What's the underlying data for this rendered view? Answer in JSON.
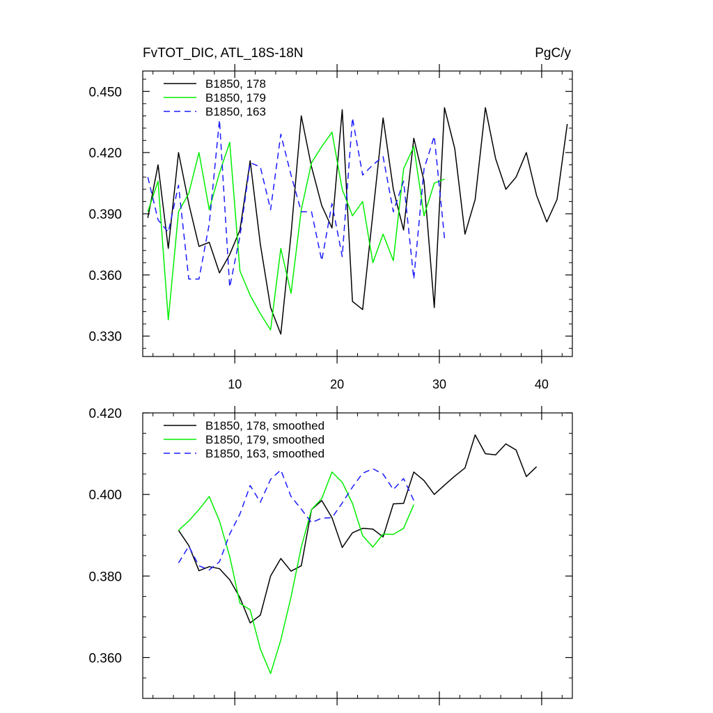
{
  "header": {
    "left_title": "FvTOT_DIC, ATL_18S-18N",
    "right_title": "PgC/y"
  },
  "chart_data": [
    {
      "type": "line",
      "xlim": [
        1,
        43
      ],
      "ylim": [
        0.32,
        0.46
      ],
      "x_ticks": [
        10,
        20,
        30,
        40
      ],
      "x_minor_step": 2,
      "y_ticks": [
        0.33,
        0.36,
        0.39,
        0.42,
        0.45
      ],
      "y_tick_labels": [
        "0.330",
        "0.360",
        "0.390",
        "0.420",
        "0.450"
      ],
      "y_minor_step": 0.006,
      "show_x_tick_labels": true,
      "legend_position": "top-left",
      "series": [
        {
          "name": "B1850, 178",
          "color": "#000000",
          "dash": "solid",
          "x": [
            1.5,
            2.5,
            3.5,
            4.5,
            5.5,
            6.5,
            7.5,
            8.5,
            9.5,
            10.5,
            11.5,
            12.5,
            13.5,
            14.5,
            15.5,
            16.5,
            17.5,
            18.5,
            19.5,
            20.5,
            21.5,
            22.5,
            23.5,
            24.5,
            25.5,
            26.5,
            27.5,
            28.5,
            29.5,
            30.5,
            31.5,
            32.5,
            33.5,
            34.5,
            35.5,
            36.5,
            37.5,
            38.5,
            39.5,
            40.5,
            41.5,
            42.5
          ],
          "y": [
            0.388,
            0.414,
            0.373,
            0.42,
            0.395,
            0.374,
            0.376,
            0.361,
            0.37,
            0.382,
            0.416,
            0.375,
            0.344,
            0.331,
            0.38,
            0.438,
            0.413,
            0.394,
            0.383,
            0.441,
            0.347,
            0.343,
            0.39,
            0.437,
            0.402,
            0.382,
            0.427,
            0.406,
            0.344,
            0.442,
            0.422,
            0.38,
            0.397,
            0.442,
            0.417,
            0.402,
            0.408,
            0.42,
            0.399,
            0.386,
            0.397,
            0.434
          ]
        },
        {
          "name": "B1850, 179",
          "color": "#00ee00",
          "dash": "solid",
          "x": [
            1.5,
            2.5,
            3.5,
            4.5,
            5.5,
            6.5,
            7.5,
            8.5,
            9.5,
            10.5,
            11.5,
            12.5,
            13.5,
            14.5,
            15.5,
            16.5,
            17.5,
            18.5,
            19.5,
            20.5,
            21.5,
            22.5,
            23.5,
            24.5,
            25.5,
            26.5,
            27.5,
            28.5,
            29.5,
            30.5
          ],
          "y": [
            0.391,
            0.406,
            0.338,
            0.391,
            0.4,
            0.42,
            0.392,
            0.41,
            0.425,
            0.362,
            0.35,
            0.341,
            0.333,
            0.373,
            0.351,
            0.392,
            0.415,
            0.423,
            0.43,
            0.402,
            0.389,
            0.396,
            0.366,
            0.38,
            0.367,
            0.412,
            0.423,
            0.389,
            0.405,
            0.407
          ]
        },
        {
          "name": "B1850, 163",
          "color": "#1a1aff",
          "dash": "dashed",
          "x": [
            1.5,
            2.5,
            3.5,
            4.5,
            5.5,
            6.5,
            7.5,
            8.5,
            9.5,
            10.5,
            11.5,
            12.5,
            13.5,
            14.5,
            15.5,
            16.5,
            17.5,
            18.5,
            19.5,
            20.5,
            21.5,
            22.5,
            23.5,
            24.5,
            25.5,
            26.5,
            27.5,
            28.5,
            29.5,
            30.5
          ],
          "y": [
            0.408,
            0.387,
            0.381,
            0.404,
            0.358,
            0.358,
            0.385,
            0.436,
            0.354,
            0.379,
            0.415,
            0.413,
            0.392,
            0.429,
            0.409,
            0.391,
            0.391,
            0.367,
            0.395,
            0.369,
            0.437,
            0.409,
            0.414,
            0.418,
            0.391,
            0.406,
            0.358,
            0.412,
            0.428,
            0.378
          ]
        }
      ]
    },
    {
      "type": "line",
      "xlim": [
        1,
        43
      ],
      "ylim": [
        0.35,
        0.42
      ],
      "x_ticks": [
        10,
        20,
        30,
        40
      ],
      "x_minor_step": 2,
      "y_ticks": [
        0.36,
        0.38,
        0.4,
        0.42
      ],
      "y_tick_labels": [
        "0.360",
        "0.380",
        "0.400",
        "0.420"
      ],
      "y_minor_step": 0.005,
      "show_x_tick_labels": false,
      "legend_position": "top-left",
      "series": [
        {
          "name": "B1850, 178, smoothed",
          "color": "#000000",
          "dash": "solid",
          "x": [
            4.5,
            5.5,
            6.5,
            7.5,
            8.5,
            9.5,
            10.5,
            11.5,
            12.5,
            13.5,
            14.5,
            15.5,
            16.5,
            17.5,
            18.5,
            19.5,
            20.5,
            21.5,
            22.5,
            23.5,
            24.5,
            25.5,
            26.5,
            27.5,
            28.5,
            29.5,
            30.5,
            31.5,
            32.5,
            33.5,
            34.5,
            35.5,
            36.5,
            37.5,
            38.5,
            39.5
          ],
          "y": [
            0.3912,
            0.3875,
            0.3813,
            0.3823,
            0.3818,
            0.3791,
            0.3747,
            0.3685,
            0.3704,
            0.38,
            0.3843,
            0.3812,
            0.3825,
            0.3963,
            0.3985,
            0.3943,
            0.387,
            0.3906,
            0.3917,
            0.3915,
            0.3896,
            0.3977,
            0.3978,
            0.4055,
            0.4034,
            0.4,
            0.4023,
            0.4045,
            0.4065,
            0.4146,
            0.41,
            0.4097,
            0.4124,
            0.4109,
            0.4044,
            0.4068
          ]
        },
        {
          "name": "B1850, 179, smoothed",
          "color": "#00ee00",
          "dash": "solid",
          "x": [
            4.5,
            5.5,
            6.5,
            7.5,
            8.5,
            9.5,
            10.5,
            11.5,
            12.5,
            13.5,
            14.5,
            15.5,
            16.5,
            17.5,
            18.5,
            19.5,
            20.5,
            21.5,
            22.5,
            23.5,
            24.5,
            25.5,
            26.5,
            27.5
          ],
          "y": [
            0.3912,
            0.3935,
            0.3963,
            0.3995,
            0.3935,
            0.3848,
            0.3733,
            0.3717,
            0.3621,
            0.3561,
            0.3643,
            0.3749,
            0.3871,
            0.3963,
            0.399,
            0.4055,
            0.403,
            0.3978,
            0.3899,
            0.3871,
            0.3903,
            0.3902,
            0.3917,
            0.3975
          ]
        },
        {
          "name": "B1850, 163, smoothed",
          "color": "#1a1aff",
          "dash": "dashed",
          "x": [
            4.5,
            5.5,
            6.5,
            7.5,
            8.5,
            9.5,
            10.5,
            11.5,
            12.5,
            13.5,
            14.5,
            15.5,
            16.5,
            17.5,
            18.5,
            19.5,
            20.5,
            21.5,
            22.5,
            23.5,
            24.5,
            25.5,
            26.5,
            27.5
          ],
          "y": [
            0.3832,
            0.3873,
            0.3825,
            0.3815,
            0.3835,
            0.3903,
            0.3952,
            0.4022,
            0.3981,
            0.4037,
            0.406,
            0.3995,
            0.3964,
            0.3931,
            0.3942,
            0.3943,
            0.3979,
            0.4018,
            0.4052,
            0.4063,
            0.405,
            0.4012,
            0.4039,
            0.3985
          ]
        }
      ]
    }
  ]
}
